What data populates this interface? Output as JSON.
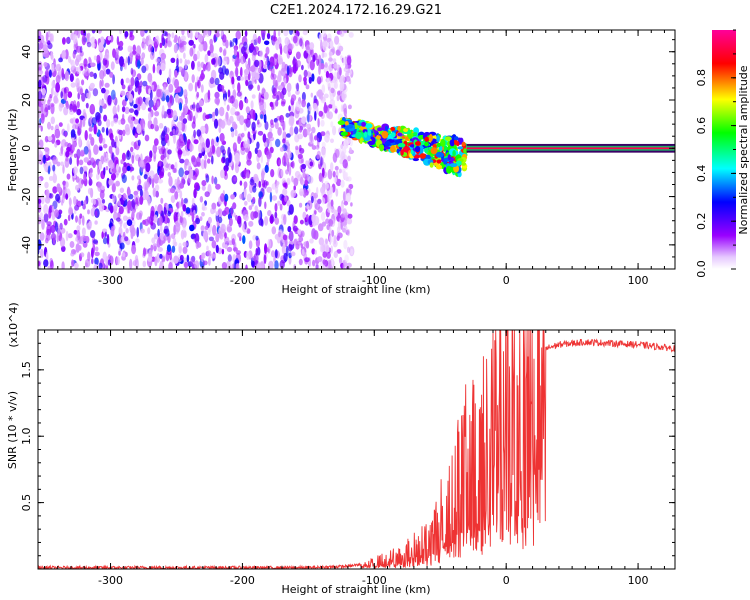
{
  "title": "C2E1.2024.172.16.29.G21",
  "chart_data": [
    {
      "type": "heatmap",
      "xlabel": "Height of straight line (km)",
      "ylabel": "Frequency (Hz)",
      "xlim": [
        -355,
        128
      ],
      "ylim": [
        -50,
        49
      ],
      "x_ticks": [
        -300,
        -200,
        -100,
        0,
        100
      ],
      "y_ticks": [
        -40,
        -20,
        0,
        20,
        40
      ],
      "colorbar": {
        "label": "Normalized spectral amplitude",
        "range": [
          0,
          1
        ],
        "ticks": [
          0.0,
          0.2,
          0.4,
          0.6,
          0.8
        ],
        "colormap": [
          "#ffffff",
          "#9900ff",
          "#0000ff",
          "#00ffff",
          "#00ff00",
          "#ffff00",
          "#ff0000",
          "#ff0099"
        ]
      },
      "regions": [
        {
          "x_range": [
            -355,
            -125
          ],
          "freq_range": [
            -50,
            49
          ],
          "amplitude": "noise 0.05-0.3"
        },
        {
          "x_range": [
            -125,
            -30
          ],
          "freq_range": [
            -15,
            12
          ],
          "amplitude": "0.2-0.9, frequency decreasing from ~10 Hz to ~-5 Hz"
        },
        {
          "x_range": [
            -30,
            128
          ],
          "freq_center": 0,
          "amplitude": "~0.9-1.0 narrow line at 0 Hz"
        }
      ]
    },
    {
      "type": "line",
      "xlabel": "Height of straight line (km)",
      "ylabel": "SNR (10 * v/v)",
      "y_multiplier": "(x10^4)",
      "xlim": [
        -355,
        128
      ],
      "ylim": [
        0,
        1.8
      ],
      "x_ticks": [
        -300,
        -200,
        -100,
        0,
        100
      ],
      "y_ticks": [
        0.5,
        1.0,
        1.5
      ],
      "color": "#ee3333",
      "series": [
        {
          "x": [
            -355,
            -300,
            -250,
            -200,
            -150,
            -120,
            -100,
            -80,
            -60,
            -50,
            -40,
            -30,
            -20,
            -10,
            0,
            10,
            20,
            30,
            40,
            50,
            60,
            80,
            100,
            128
          ],
          "y": [
            0.01,
            0.01,
            0.01,
            0.01,
            0.01,
            0.02,
            0.05,
            0.1,
            0.2,
            0.35,
            0.55,
            0.75,
            0.85,
            1.1,
            1.3,
            1.45,
            1.6,
            1.66,
            1.69,
            1.7,
            1.71,
            1.7,
            1.69,
            1.66
          ]
        }
      ]
    }
  ]
}
